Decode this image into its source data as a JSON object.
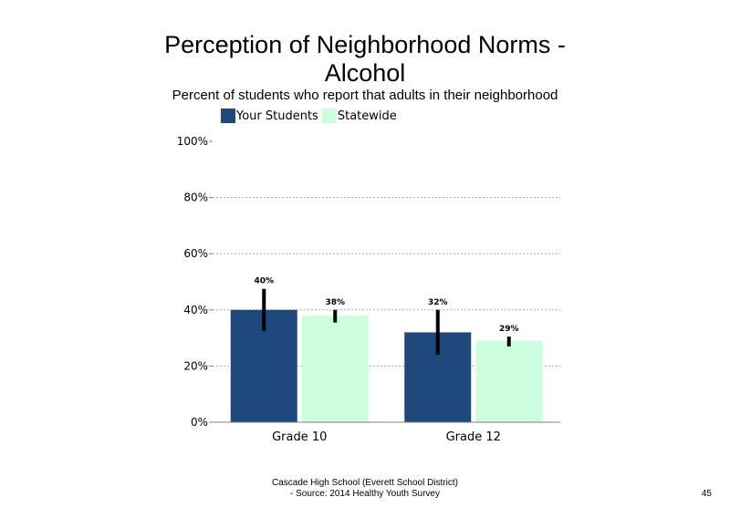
{
  "chart_data": {
    "type": "bar",
    "title": "Perception of Neighborhood Norms - Alcohol",
    "subtitle": "Percent of students who report that adults in their neighborhood",
    "categories": [
      "Grade 10",
      "Grade 12"
    ],
    "series": [
      {
        "name": "Your Students",
        "values": [
          40,
          32
        ],
        "labels": [
          "40%",
          "32%"
        ],
        "error": [
          [
            32.5,
            47.5
          ],
          [
            24,
            40
          ]
        ],
        "color": "#1f497d"
      },
      {
        "name": "Statewide",
        "values": [
          38,
          29
        ],
        "labels": [
          "38%",
          "29%"
        ],
        "error": [
          [
            35.5,
            40
          ],
          [
            27,
            30.5
          ]
        ],
        "color": "#ccffdd"
      }
    ],
    "ylim": [
      0,
      100
    ],
    "yticks": [
      0,
      20,
      40,
      60,
      80,
      100
    ],
    "ytick_labels": [
      "0%",
      "20%",
      "40%",
      "60%",
      "80%",
      "100%"
    ],
    "grid": true,
    "legend": "top-center"
  },
  "footer": {
    "line1": "Cascade High School (Everett School District)",
    "line2": "- Source: 2014 Healthy  Youth Survey"
  },
  "page_number": "45"
}
